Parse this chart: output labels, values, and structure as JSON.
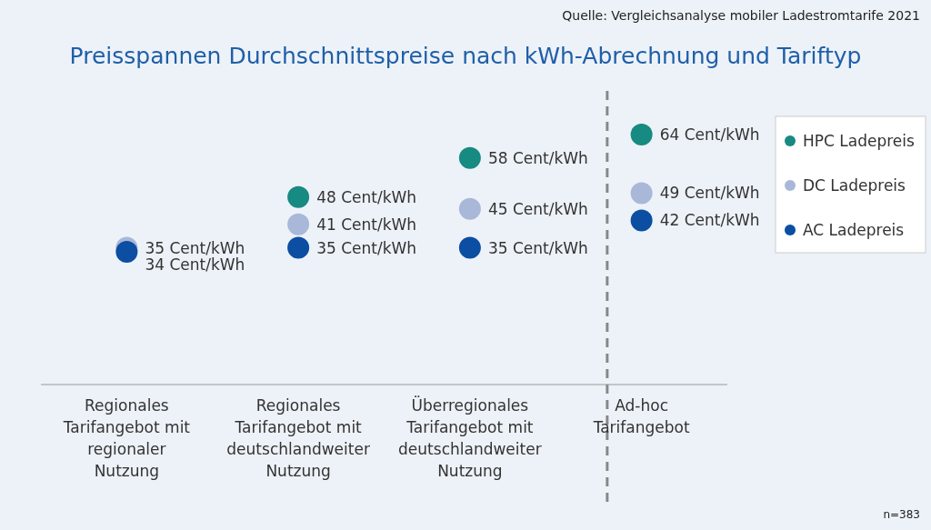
{
  "chart_data": {
    "type": "scatter",
    "title": "Preisspannen Durchschnittspreise nach kWh-Abrechnung und Tariftyp",
    "categories": [
      "Regionales Tarifangebot mit regionaler Nutzung",
      "Regionales Tarifangebot mit deutschlandweiter Nutzung",
      "Überregionales Tarifangebot mit deutschlandweiter Nutzung",
      "Ad-hoc Tarifangebot"
    ],
    "series": [
      {
        "name": "HPC Ladepreis",
        "color": "#178a82",
        "values": [
          null,
          48,
          58,
          64
        ],
        "value_labels": [
          null,
          "48 Cent/kWh",
          "58 Cent/kWh",
          "64 Cent/kWh"
        ]
      },
      {
        "name": "DC Ladepreis",
        "color": "#a9b7d9",
        "values": [
          35,
          41,
          45,
          49
        ],
        "value_labels": [
          "35 Cent/kWh",
          "41 Cent/kWh",
          "45 Cent/kWh",
          "49 Cent/kWh"
        ]
      },
      {
        "name": "AC Ladepreis",
        "color": "#0b4ea2",
        "values": [
          34,
          35,
          35,
          42
        ],
        "value_labels": [
          "34 Cent/kWh",
          "35 Cent/kWh",
          "35 Cent/kWh",
          "42 Cent/kWh"
        ]
      }
    ],
    "tick_labels": "x",
    "marker": "circle",
    "legend": "top right",
    "annotations": [
      "Quelle: Vergleichsanalyse mobiler Ladestromtarife 2021",
      "n=383"
    ]
  }
}
